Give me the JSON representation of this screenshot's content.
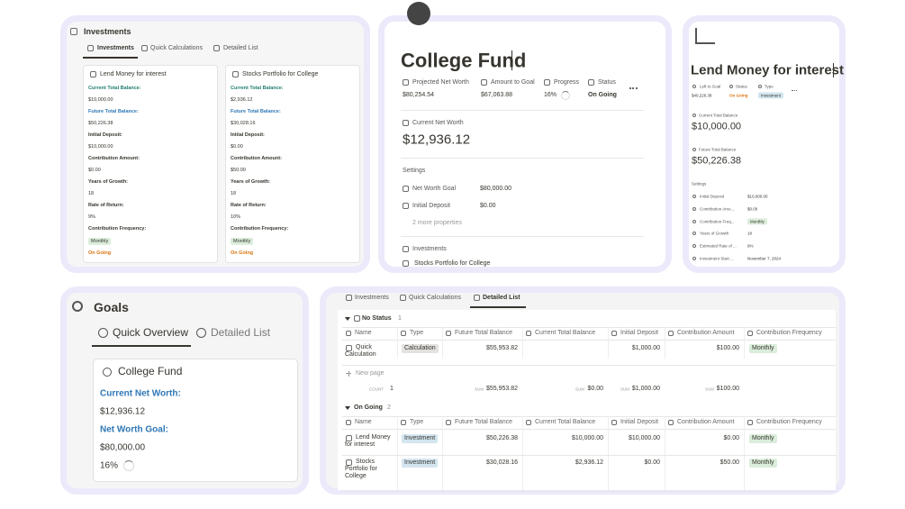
{
  "investments_panel": {
    "title": "Investments",
    "tabs": [
      "Investments",
      "Quick Calculations",
      "Detailed List"
    ],
    "cards": [
      {
        "title": "Lend Money for interest",
        "fields": [
          {
            "label": "Current Total Balance:",
            "value": "$10,000.00"
          },
          {
            "label": "Future Total Balance:",
            "value": "$50,226.38"
          },
          {
            "label": "Initial Deposit:",
            "value": "$10,000.00"
          },
          {
            "label": "Contribution Amount:",
            "value": "$0.00"
          },
          {
            "label": "Years of Growth:",
            "value": "18"
          },
          {
            "label": "Rate of Return:",
            "value": "9%"
          },
          {
            "label": "Contribution Frequency:",
            "value": "Monthly"
          }
        ],
        "status": "On Going"
      },
      {
        "title": "Stocks Portfolio for College",
        "fields": [
          {
            "label": "Current Total Balance:",
            "value": "$2,936.12"
          },
          {
            "label": "Future Total Balance:",
            "value": "$30,028.16"
          },
          {
            "label": "Initial Deposit:",
            "value": "$0.00"
          },
          {
            "label": "Contribution Amount:",
            "value": "$50.00"
          },
          {
            "label": "Years of Growth:",
            "value": "18"
          },
          {
            "label": "Rate of Return:",
            "value": "10%"
          },
          {
            "label": "Contribution Frequency:",
            "value": "Monthly"
          }
        ],
        "status": "On Going"
      }
    ]
  },
  "college_fund": {
    "title": "College Fund",
    "properties": [
      {
        "label": "Projected Net Worth",
        "value": "$80,254.54"
      },
      {
        "label": "Amount to Goal",
        "value": "$67,063.88"
      },
      {
        "label": "Progress",
        "value": "16%"
      },
      {
        "label": "Status",
        "value": "On Going"
      }
    ],
    "current_label": "Current Net Worth",
    "current_value": "$12,936.12",
    "settings": "Settings",
    "settings_properties": [
      {
        "label": "Net Worth Goal",
        "value": "$80,000.00"
      },
      {
        "label": "Initial Deposit",
        "value": "$0.00"
      }
    ],
    "more": "2 more properties",
    "relation_label": "Investments",
    "relation_item": "Stocks Portfolio for College"
  },
  "lend_money": {
    "title": "Lend Money for interest",
    "properties": [
      {
        "label": "Left to Goal",
        "value": "$40,226.38"
      },
      {
        "label": "Status",
        "value": "On Going"
      },
      {
        "label": "Type",
        "value": "Investment"
      }
    ],
    "balances": [
      {
        "label": "Current Total Balance",
        "value": "$10,000.00"
      },
      {
        "label": "Future Total Balance",
        "value": "$50,226.38"
      }
    ],
    "settings": "Settings",
    "settings_properties": [
      {
        "label": "Initial Deposit",
        "value": "$10,000.00"
      },
      {
        "label": "Contribution Amo...",
        "value": "$0.00"
      },
      {
        "label": "Contribution Freq...",
        "value": "Monthly"
      },
      {
        "label": "Years of Growth",
        "value": "18"
      },
      {
        "label": "Estimated Rate of ...",
        "value": "9%"
      },
      {
        "label": "Investment Start ...",
        "value": "November 7, 2024"
      }
    ]
  },
  "goals": {
    "title": "Goals",
    "tabs": [
      "Quick Overview",
      "Detailed List"
    ],
    "card": {
      "title": "College Fund",
      "current_label": "Current Net Worth:",
      "current_value": "$12,936.12",
      "goal_label": "Net Worth Goal:",
      "goal_value": "$80,000.00",
      "progress": "16%"
    }
  },
  "detailed_list": {
    "tabs": [
      "Investments",
      "Quick Calculations",
      "Detailed List"
    ],
    "columns": [
      "Name",
      "Type",
      "Future Total Balance",
      "Current Total Balance",
      "Initial Deposit",
      "Contribution Amount",
      "Contribution Frequency"
    ],
    "groups": [
      {
        "name": "No Status",
        "count": "1",
        "rows": [
          {
            "name": "Quick Calculation",
            "type": "Calculation",
            "future": "$55,953.82",
            "initial": "$1,000.00",
            "contribution": "$100.00",
            "frequency": "Monthly"
          }
        ],
        "new_page": "New page",
        "footer": {
          "count_label": "COUNT",
          "count": "1",
          "sums": [
            {
              "label": "SUM",
              "value": "$55,953.82"
            },
            {
              "label": "SUM",
              "value": "$0.00"
            },
            {
              "label": "SUM",
              "value": "$1,000.00"
            },
            {
              "label": "SUM",
              "value": "$100.00"
            }
          ]
        }
      },
      {
        "name": "On Going",
        "count": "2",
        "rows": [
          {
            "name": "Lend Money for interest",
            "type": "Investment",
            "future": "$50,226.38",
            "current": "$10,000.00",
            "initial": "$10,000.00",
            "contribution": "$0.00",
            "frequency": "Monthly"
          },
          {
            "name": "Stocks Portfolio for College",
            "type": "Investment",
            "future": "$30,028.16",
            "current": "$2,936.12",
            "initial": "$0.00",
            "contribution": "$50.00",
            "frequency": "Monthly"
          }
        ]
      }
    ]
  }
}
